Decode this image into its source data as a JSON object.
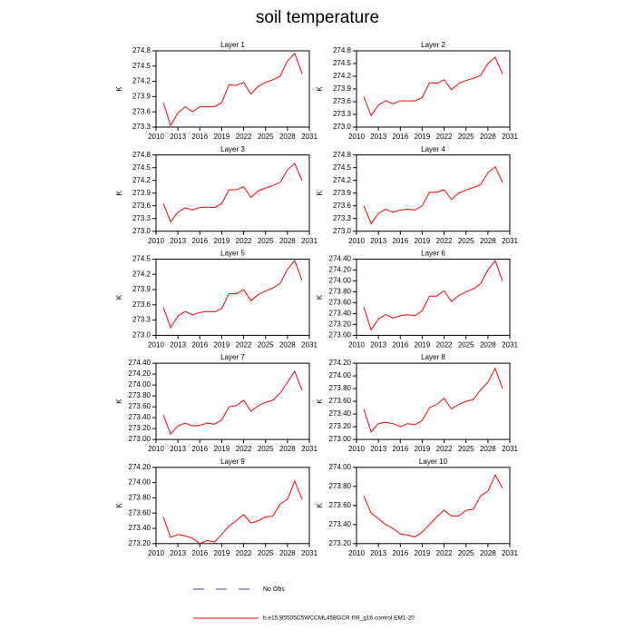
{
  "title": "soil temperature",
  "legend": [
    {
      "name": "No Obs",
      "color": "#4b3f8f",
      "dash": true
    },
    {
      "name": "b.e15.B5505C5WCCML45BGCR.f09_g16.control.EM1-20",
      "color": "#ff0000",
      "dash": false
    }
  ],
  "chart_data": [
    {
      "type": "line",
      "title": "Layer 1",
      "ylabel": "K",
      "color": "#ff0000",
      "x": [
        2011,
        2012,
        2013,
        2014,
        2015,
        2016,
        2017,
        2018,
        2019,
        2020,
        2021,
        2022,
        2023,
        2024,
        2025,
        2026,
        2027,
        2028,
        2029,
        2030
      ],
      "xlim": [
        2010,
        2031
      ],
      "xticks": [
        2010,
        2013,
        2016,
        2019,
        2022,
        2025,
        2028,
        2031
      ],
      "ylim": [
        273.3,
        274.8
      ],
      "yticks": [
        273.3,
        273.6,
        273.9,
        274.2,
        274.5,
        274.8
      ],
      "values": [
        273.78,
        273.33,
        273.58,
        273.7,
        273.6,
        273.7,
        273.7,
        273.7,
        273.78,
        274.13,
        274.12,
        274.18,
        273.95,
        274.1,
        274.18,
        274.23,
        274.3,
        274.6,
        274.75,
        274.35
      ]
    },
    {
      "type": "line",
      "title": "Layer 2",
      "ylabel": "K",
      "color": "#ff0000",
      "x": [
        2011,
        2012,
        2013,
        2014,
        2015,
        2016,
        2017,
        2018,
        2019,
        2020,
        2021,
        2022,
        2023,
        2024,
        2025,
        2026,
        2027,
        2028,
        2029,
        2030
      ],
      "xlim": [
        2010,
        2031
      ],
      "xticks": [
        2010,
        2013,
        2016,
        2019,
        2022,
        2025,
        2028,
        2031
      ],
      "ylim": [
        273.0,
        274.8
      ],
      "yticks": [
        {
          "value": 273,
          "label": "273.0"
        },
        273.3,
        273.6,
        273.9,
        274.2,
        274.5,
        274.8
      ],
      "values": [
        273.72,
        273.27,
        273.52,
        273.62,
        273.55,
        273.62,
        273.62,
        273.62,
        273.7,
        274.05,
        274.03,
        274.12,
        273.88,
        274.03,
        274.1,
        274.15,
        274.22,
        274.5,
        274.65,
        274.25
      ]
    },
    {
      "type": "line",
      "title": "Layer 3",
      "ylabel": "K",
      "color": "#ff0000",
      "x": [
        2011,
        2012,
        2013,
        2014,
        2015,
        2016,
        2017,
        2018,
        2019,
        2020,
        2021,
        2022,
        2023,
        2024,
        2025,
        2026,
        2027,
        2028,
        2029,
        2030
      ],
      "xlim": [
        2010,
        2031
      ],
      "xticks": [
        2010,
        2013,
        2016,
        2019,
        2022,
        2025,
        2028,
        2031
      ],
      "ylim": [
        273.0,
        274.8
      ],
      "yticks": [
        {
          "value": 273,
          "label": "273.0"
        },
        273.3,
        273.6,
        273.9,
        274.2,
        274.5,
        274.8
      ],
      "values": [
        273.65,
        273.22,
        273.45,
        273.55,
        273.5,
        273.56,
        273.57,
        273.56,
        273.65,
        273.98,
        273.98,
        274.05,
        273.8,
        273.95,
        274.02,
        274.08,
        274.15,
        274.45,
        274.6,
        274.2
      ]
    },
    {
      "type": "line",
      "title": "Layer 4",
      "ylabel": "K",
      "color": "#ff0000",
      "x": [
        2011,
        2012,
        2013,
        2014,
        2015,
        2016,
        2017,
        2018,
        2019,
        2020,
        2021,
        2022,
        2023,
        2024,
        2025,
        2026,
        2027,
        2028,
        2029,
        2030
      ],
      "xlim": [
        2010,
        2031
      ],
      "xticks": [
        2010,
        2013,
        2016,
        2019,
        2022,
        2025,
        2028,
        2031
      ],
      "ylim": [
        273.0,
        274.8
      ],
      "yticks": [
        {
          "value": 273,
          "label": "273.0"
        },
        273.3,
        273.6,
        273.9,
        274.2,
        274.5,
        274.8
      ],
      "values": [
        273.6,
        273.18,
        273.42,
        273.52,
        273.45,
        273.5,
        273.52,
        273.5,
        273.6,
        273.92,
        273.92,
        273.98,
        273.75,
        273.9,
        273.97,
        274.03,
        274.1,
        274.38,
        274.52,
        274.15
      ]
    },
    {
      "type": "line",
      "title": "Layer 5",
      "ylabel": "K",
      "color": "#ff0000",
      "x": [
        2011,
        2012,
        2013,
        2014,
        2015,
        2016,
        2017,
        2018,
        2019,
        2020,
        2021,
        2022,
        2023,
        2024,
        2025,
        2026,
        2027,
        2028,
        2029,
        2030
      ],
      "xlim": [
        2010,
        2031
      ],
      "xticks": [
        2010,
        2013,
        2016,
        2019,
        2022,
        2025,
        2028,
        2031
      ],
      "ylim": [
        273.0,
        274.5
      ],
      "yticks": [
        {
          "value": 273,
          "label": "273.0"
        },
        273.3,
        273.6,
        273.9,
        274.2,
        274.5
      ],
      "values": [
        273.55,
        273.15,
        273.38,
        273.47,
        273.4,
        273.45,
        273.47,
        273.46,
        273.53,
        273.82,
        273.82,
        273.9,
        273.68,
        273.8,
        273.87,
        273.93,
        274.02,
        274.3,
        274.47,
        274.08
      ]
    },
    {
      "type": "line",
      "title": "Layer 6",
      "ylabel": "K",
      "color": "#ff0000",
      "x": [
        2011,
        2012,
        2013,
        2014,
        2015,
        2016,
        2017,
        2018,
        2019,
        2020,
        2021,
        2022,
        2023,
        2024,
        2025,
        2026,
        2027,
        2028,
        2029,
        2030
      ],
      "xlim": [
        2010,
        2031
      ],
      "xticks": [
        2010,
        2013,
        2016,
        2019,
        2022,
        2025,
        2028,
        2031
      ],
      "ylim": [
        273.0,
        274.4
      ],
      "yticks": [
        {
          "value": 273,
          "label": "273.00"
        },
        {
          "value": 273.2,
          "label": "273.20"
        },
        {
          "value": 273.4,
          "label": "273.40"
        },
        {
          "value": 273.6,
          "label": "273.60"
        },
        {
          "value": 273.8,
          "label": "273.80"
        },
        {
          "value": 274,
          "label": "274.00"
        },
        {
          "value": 274.2,
          "label": "274.20"
        },
        {
          "value": 274.4,
          "label": "274.40"
        }
      ],
      "values": [
        273.52,
        273.1,
        273.3,
        273.38,
        273.32,
        273.36,
        273.38,
        273.36,
        273.45,
        273.72,
        273.72,
        273.82,
        273.62,
        273.73,
        273.8,
        273.85,
        273.95,
        274.2,
        274.37,
        274.0
      ]
    },
    {
      "type": "line",
      "title": "Layer 7",
      "ylabel": "K",
      "color": "#ff0000",
      "x": [
        2011,
        2012,
        2013,
        2014,
        2015,
        2016,
        2017,
        2018,
        2019,
        2020,
        2021,
        2022,
        2023,
        2024,
        2025,
        2026,
        2027,
        2028,
        2029,
        2030
      ],
      "xlim": [
        2010,
        2031
      ],
      "xticks": [
        2010,
        2013,
        2016,
        2019,
        2022,
        2025,
        2028,
        2031
      ],
      "ylim": [
        273.0,
        274.4
      ],
      "yticks": [
        {
          "value": 273,
          "label": "273.00"
        },
        {
          "value": 273.2,
          "label": "273.20"
        },
        {
          "value": 273.4,
          "label": "273.40"
        },
        {
          "value": 273.6,
          "label": "273.60"
        },
        {
          "value": 273.8,
          "label": "273.80"
        },
        {
          "value": 274,
          "label": "274.00"
        },
        {
          "value": 274.2,
          "label": "274.20"
        },
        {
          "value": 274.4,
          "label": "274.40"
        }
      ],
      "values": [
        273.45,
        273.1,
        273.25,
        273.3,
        273.25,
        273.26,
        273.3,
        273.28,
        273.36,
        273.6,
        273.62,
        273.72,
        273.52,
        273.62,
        273.68,
        273.72,
        273.85,
        274.05,
        274.25,
        273.9
      ]
    },
    {
      "type": "line",
      "title": "Layer 8",
      "ylabel": "K",
      "color": "#ff0000",
      "x": [
        2011,
        2012,
        2013,
        2014,
        2015,
        2016,
        2017,
        2018,
        2019,
        2020,
        2021,
        2022,
        2023,
        2024,
        2025,
        2026,
        2027,
        2028,
        2029,
        2030
      ],
      "xlim": [
        2010,
        2031
      ],
      "xticks": [
        2010,
        2013,
        2016,
        2019,
        2022,
        2025,
        2028,
        2031
      ],
      "ylim": [
        273.0,
        274.2
      ],
      "yticks": [
        {
          "value": 273,
          "label": "273.00"
        },
        {
          "value": 273.2,
          "label": "273.20"
        },
        {
          "value": 273.4,
          "label": "273.40"
        },
        {
          "value": 273.6,
          "label": "273.60"
        },
        {
          "value": 273.8,
          "label": "273.80"
        },
        {
          "value": 274,
          "label": "274.00"
        },
        {
          "value": 274.2,
          "label": "274.20"
        }
      ],
      "values": [
        273.48,
        273.12,
        273.25,
        273.27,
        273.25,
        273.2,
        273.25,
        273.23,
        273.3,
        273.5,
        273.55,
        273.65,
        273.48,
        273.55,
        273.6,
        273.63,
        273.78,
        273.9,
        274.12,
        273.8
      ]
    },
    {
      "type": "line",
      "title": "Layer 9",
      "ylabel": "K",
      "color": "#ff0000",
      "x": [
        2011,
        2012,
        2013,
        2014,
        2015,
        2016,
        2017,
        2018,
        2019,
        2020,
        2021,
        2022,
        2023,
        2024,
        2025,
        2026,
        2027,
        2028,
        2029,
        2030
      ],
      "xlim": [
        2010,
        2031
      ],
      "xticks": [
        2010,
        2013,
        2016,
        2019,
        2022,
        2025,
        2028,
        2031
      ],
      "ylim": [
        273.2,
        274.2
      ],
      "yticks": [
        {
          "value": 273.2,
          "label": "273.20"
        },
        {
          "value": 273.4,
          "label": "273.40"
        },
        {
          "value": 273.6,
          "label": "273.60"
        },
        {
          "value": 273.8,
          "label": "273.80"
        },
        {
          "value": 274,
          "label": "274.00"
        },
        {
          "value": 274.2,
          "label": "274.20"
        }
      ],
      "values": [
        273.55,
        273.28,
        273.32,
        273.3,
        273.27,
        273.2,
        273.24,
        273.22,
        273.32,
        273.43,
        273.5,
        273.58,
        273.47,
        273.5,
        273.55,
        273.56,
        273.72,
        273.78,
        274.02,
        273.78
      ]
    },
    {
      "type": "line",
      "title": "Layer 10",
      "ylabel": "K",
      "color": "#ff0000",
      "x": [
        2011,
        2012,
        2013,
        2014,
        2015,
        2016,
        2017,
        2018,
        2019,
        2020,
        2021,
        2022,
        2023,
        2024,
        2025,
        2026,
        2027,
        2028,
        2029,
        2030
      ],
      "xlim": [
        2010,
        2031
      ],
      "xticks": [
        2010,
        2013,
        2016,
        2019,
        2022,
        2025,
        2028,
        2031
      ],
      "ylim": [
        273.2,
        274.0
      ],
      "yticks": [
        {
          "value": 273.2,
          "label": "273.20"
        },
        {
          "value": 273.4,
          "label": "273.40"
        },
        {
          "value": 273.6,
          "label": "273.60"
        },
        {
          "value": 273.8,
          "label": "273.80"
        },
        {
          "value": 274,
          "label": "274.00"
        }
      ],
      "values": [
        273.7,
        273.52,
        273.46,
        273.4,
        273.36,
        273.3,
        273.29,
        273.27,
        273.32,
        273.4,
        273.48,
        273.55,
        273.49,
        273.49,
        273.55,
        273.56,
        273.7,
        273.75,
        273.92,
        273.78
      ]
    }
  ]
}
